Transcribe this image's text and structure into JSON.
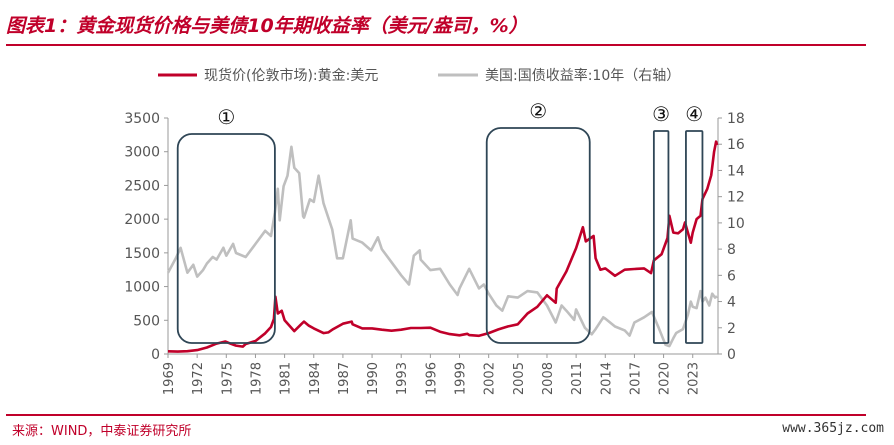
{
  "header": {
    "title": "图表1：黄金现货价格与美债10年期收益率（美元/盎司，%）"
  },
  "footer": {
    "source": "来源：WIND，中泰证券研究所",
    "watermark": "www.365jz.com"
  },
  "chart_data": {
    "type": "line",
    "legend": {
      "placement": "top",
      "entries": [
        "现货价(伦敦市场):黄金:美元",
        "美国:国债收益率:10年（右轴）"
      ]
    },
    "x_ticks": [
      "1969",
      "1972",
      "1975",
      "1978",
      "1981",
      "1984",
      "1987",
      "1990",
      "1993",
      "1996",
      "1999",
      "2002",
      "2005",
      "2008",
      "2011",
      "2014",
      "2017",
      "2020",
      "2023"
    ],
    "y_left": {
      "range": [
        0,
        3500
      ],
      "ticks": [
        0,
        500,
        1000,
        1500,
        2000,
        2500,
        3000,
        3500
      ]
    },
    "y_right": {
      "range": [
        0,
        18
      ],
      "ticks": [
        0,
        2,
        4,
        6,
        8,
        10,
        12,
        14,
        16,
        18
      ]
    },
    "grid": false,
    "colors": {
      "gold": "#c0002a",
      "yield": "#bfbfbf",
      "box": "#2f4656"
    },
    "annotations": [
      {
        "label": "①",
        "start": 1970.0,
        "end": 1980.0
      },
      {
        "label": "②",
        "start": 2001.8,
        "end": 2012.4
      },
      {
        "label": "③",
        "start": 2019.0,
        "end": 2020.5
      },
      {
        "label": "④",
        "start": 2022.3,
        "end": 2024.0
      }
    ],
    "series": [
      {
        "name": "现货价(伦敦市场):黄金:美元",
        "axis": "left",
        "points": [
          [
            1969,
            40
          ],
          [
            1970,
            36
          ],
          [
            1971,
            41
          ],
          [
            1972,
            58
          ],
          [
            1973,
            97
          ],
          [
            1974,
            154
          ],
          [
            1974.9,
            186
          ],
          [
            1975.5,
            150
          ],
          [
            1976,
            125
          ],
          [
            1976.7,
            110
          ],
          [
            1977,
            148
          ],
          [
            1978,
            193
          ],
          [
            1979,
            307
          ],
          [
            1979.6,
            400
          ],
          [
            1979.9,
            520
          ],
          [
            1980.05,
            850
          ],
          [
            1980.3,
            600
          ],
          [
            1980.7,
            640
          ],
          [
            1981,
            500
          ],
          [
            1981.5,
            420
          ],
          [
            1982,
            340
          ],
          [
            1982.7,
            440
          ],
          [
            1983,
            480
          ],
          [
            1983.5,
            420
          ],
          [
            1984,
            380
          ],
          [
            1985,
            310
          ],
          [
            1985.5,
            320
          ],
          [
            1986,
            370
          ],
          [
            1987,
            450
          ],
          [
            1987.9,
            480
          ],
          [
            1988,
            440
          ],
          [
            1989,
            380
          ],
          [
            1990,
            380
          ],
          [
            1991,
            360
          ],
          [
            1992,
            345
          ],
          [
            1993,
            360
          ],
          [
            1994,
            385
          ],
          [
            1995,
            385
          ],
          [
            1996,
            390
          ],
          [
            1997,
            330
          ],
          [
            1998,
            295
          ],
          [
            1999,
            278
          ],
          [
            1999.8,
            300
          ],
          [
            2000,
            280
          ],
          [
            2001,
            270
          ],
          [
            2002,
            310
          ],
          [
            2003,
            365
          ],
          [
            2004,
            410
          ],
          [
            2005,
            440
          ],
          [
            2006,
            600
          ],
          [
            2007,
            700
          ],
          [
            2008,
            870
          ],
          [
            2008.9,
            760
          ],
          [
            2009,
            970
          ],
          [
            2010,
            1225
          ],
          [
            2011,
            1570
          ],
          [
            2011.7,
            1880
          ],
          [
            2012,
            1670
          ],
          [
            2012.8,
            1750
          ],
          [
            2013,
            1420
          ],
          [
            2013.5,
            1250
          ],
          [
            2014,
            1270
          ],
          [
            2015,
            1160
          ],
          [
            2016,
            1250
          ],
          [
            2017,
            1260
          ],
          [
            2018,
            1270
          ],
          [
            2018.7,
            1200
          ],
          [
            2019,
            1390
          ],
          [
            2019.8,
            1480
          ],
          [
            2020.4,
            1720
          ],
          [
            2020.6,
            2050
          ],
          [
            2021,
            1800
          ],
          [
            2021.5,
            1790
          ],
          [
            2022,
            1850
          ],
          [
            2022.2,
            1950
          ],
          [
            2022.8,
            1650
          ],
          [
            2023,
            1800
          ],
          [
            2023.4,
            2000
          ],
          [
            2023.8,
            2050
          ],
          [
            2024,
            2300
          ],
          [
            2024.5,
            2450
          ],
          [
            2024.9,
            2650
          ],
          [
            2025.2,
            3000
          ],
          [
            2025.4,
            3150
          ],
          [
            2025.5,
            3100
          ]
        ]
      },
      {
        "name": "美国:国债收益率:10年（右轴）",
        "axis": "right",
        "points": [
          [
            1969,
            6.2
          ],
          [
            1969.8,
            7.3
          ],
          [
            1970.3,
            8.1
          ],
          [
            1971,
            6.2
          ],
          [
            1971.6,
            6.8
          ],
          [
            1972,
            5.9
          ],
          [
            1972.6,
            6.4
          ],
          [
            1973,
            6.9
          ],
          [
            1973.6,
            7.4
          ],
          [
            1974,
            7.2
          ],
          [
            1974.7,
            8.1
          ],
          [
            1975,
            7.5
          ],
          [
            1975.7,
            8.4
          ],
          [
            1976,
            7.7
          ],
          [
            1977,
            7.4
          ],
          [
            1978,
            8.4
          ],
          [
            1979,
            9.4
          ],
          [
            1979.6,
            9.0
          ],
          [
            1980,
            10.8
          ],
          [
            1980.3,
            12.6
          ],
          [
            1980.5,
            10.2
          ],
          [
            1980.9,
            12.8
          ],
          [
            1981.3,
            13.6
          ],
          [
            1981.7,
            15.8
          ],
          [
            1982,
            14.2
          ],
          [
            1982.5,
            13.8
          ],
          [
            1982.9,
            10.5
          ],
          [
            1983,
            10.4
          ],
          [
            1983.6,
            11.8
          ],
          [
            1984,
            11.6
          ],
          [
            1984.5,
            13.6
          ],
          [
            1985,
            11.5
          ],
          [
            1985.9,
            9.5
          ],
          [
            1986.4,
            7.3
          ],
          [
            1987,
            7.3
          ],
          [
            1987.8,
            10.2
          ],
          [
            1988,
            8.8
          ],
          [
            1989,
            8.5
          ],
          [
            1989.9,
            7.9
          ],
          [
            1990.6,
            8.9
          ],
          [
            1991,
            8.0
          ],
          [
            1992,
            7.0
          ],
          [
            1993,
            6.0
          ],
          [
            1993.8,
            5.3
          ],
          [
            1994.3,
            7.5
          ],
          [
            1994.9,
            7.9
          ],
          [
            1995,
            7.2
          ],
          [
            1996,
            6.4
          ],
          [
            1997,
            6.5
          ],
          [
            1998,
            5.3
          ],
          [
            1998.8,
            4.5
          ],
          [
            1999,
            5.0
          ],
          [
            2000,
            6.5
          ],
          [
            2001,
            5.0
          ],
          [
            2001.5,
            5.3
          ],
          [
            2002,
            4.6
          ],
          [
            2002.8,
            3.7
          ],
          [
            2003.4,
            3.3
          ],
          [
            2004,
            4.4
          ],
          [
            2005,
            4.3
          ],
          [
            2006,
            4.8
          ],
          [
            2007,
            4.7
          ],
          [
            2008,
            3.7
          ],
          [
            2008.9,
            2.4
          ],
          [
            2009.5,
            3.7
          ],
          [
            2010,
            3.3
          ],
          [
            2010.8,
            2.6
          ],
          [
            2011,
            3.4
          ],
          [
            2011.9,
            2.0
          ],
          [
            2012.6,
            1.5
          ],
          [
            2013,
            1.9
          ],
          [
            2013.8,
            2.8
          ],
          [
            2014,
            2.7
          ],
          [
            2015,
            2.1
          ],
          [
            2016,
            1.8
          ],
          [
            2016.5,
            1.4
          ],
          [
            2017,
            2.4
          ],
          [
            2018,
            2.8
          ],
          [
            2018.8,
            3.2
          ],
          [
            2019.5,
            2.0
          ],
          [
            2020.2,
            0.7
          ],
          [
            2020.6,
            0.6
          ],
          [
            2021,
            1.2
          ],
          [
            2021.3,
            1.6
          ],
          [
            2022,
            1.9
          ],
          [
            2022.5,
            3.0
          ],
          [
            2022.8,
            4.0
          ],
          [
            2023,
            3.6
          ],
          [
            2023.4,
            3.5
          ],
          [
            2023.8,
            4.8
          ],
          [
            2024,
            4.0
          ],
          [
            2024.3,
            4.3
          ],
          [
            2024.7,
            3.7
          ],
          [
            2025,
            4.6
          ],
          [
            2025.3,
            4.3
          ],
          [
            2025.5,
            4.4
          ]
        ]
      }
    ]
  }
}
